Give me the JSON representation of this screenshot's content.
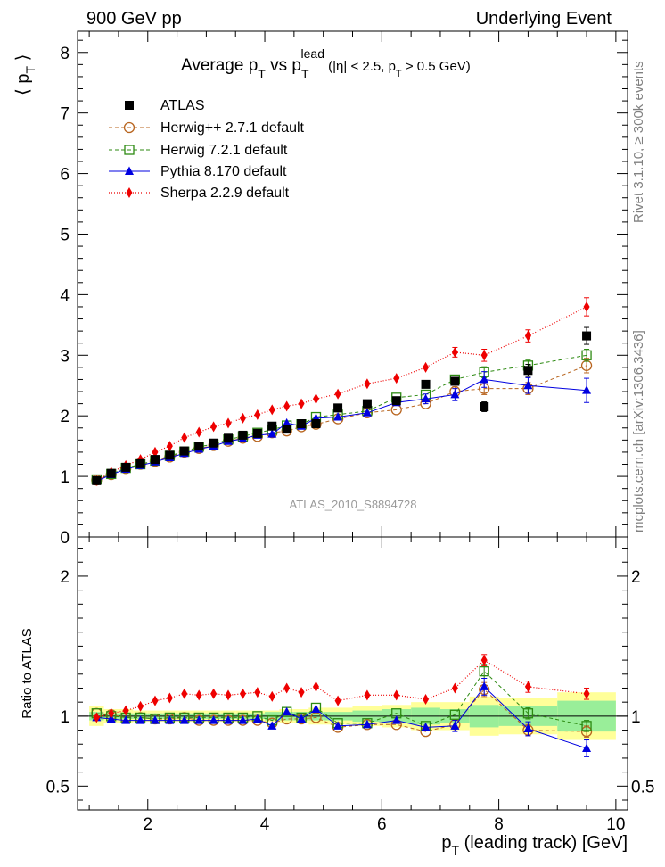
{
  "header": {
    "left": "900 GeV pp",
    "right": "Underlying Event"
  },
  "side_labels": {
    "top": "Rivet 3.1.10, ≥ 300k events",
    "bottom": "mcplots.cern.ch [arXiv:1306.3436]"
  },
  "colors": {
    "atlas": "#000000",
    "herwigpp": "#b8651f",
    "herwig7": "#2d8a12",
    "pythia": "#0000e0",
    "sherpa": "#ee0000",
    "band_inner": "#99ee99",
    "band_outer": "#ffff99"
  },
  "chart_data": [
    {
      "panel": "main",
      "type": "scatter",
      "title_parts": {
        "t1": "Average p",
        "t1_sub": "T",
        "t2": " vs p",
        "t2_sub": "T",
        "t2_sup": "lead",
        "t3": " (|η| < 2.5, p",
        "t3_sub": "T",
        "t4": " > 0.5 GeV)"
      },
      "ylabel": "⟨ p",
      "ylabel_sub": "T",
      "ylabel_end": " ⟩",
      "watermark": "ATLAS_2010_S8894728",
      "xlim": [
        0.8,
        10.2
      ],
      "ylim": [
        0,
        8.35
      ],
      "yticks": [
        0,
        1,
        2,
        3,
        4,
        5,
        6,
        7,
        8
      ],
      "ytick_labels": [
        "0",
        "1",
        "2",
        "3",
        "4",
        "5",
        "6",
        "7",
        "8"
      ],
      "legend_position": "top-left",
      "x": [
        1.125,
        1.375,
        1.625,
        1.875,
        2.125,
        2.375,
        2.625,
        2.875,
        3.125,
        3.375,
        3.625,
        3.875,
        4.125,
        4.375,
        4.625,
        4.875,
        5.25,
        5.75,
        6.25,
        6.75,
        7.25,
        7.75,
        8.5,
        9.5
      ],
      "series": [
        {
          "name": "ATLAS",
          "key": "atlas",
          "style": "square-filled",
          "values": [
            0.93,
            1.05,
            1.15,
            1.21,
            1.28,
            1.35,
            1.42,
            1.5,
            1.55,
            1.63,
            1.68,
            1.71,
            1.83,
            1.78,
            1.87,
            1.87,
            2.13,
            2.2,
            2.25,
            2.52,
            2.57,
            2.15,
            2.75,
            3.32
          ],
          "errors": [
            0.02,
            0.02,
            0.02,
            0.02,
            0.02,
            0.02,
            0.02,
            0.02,
            0.02,
            0.02,
            0.03,
            0.03,
            0.03,
            0.03,
            0.04,
            0.04,
            0.04,
            0.05,
            0.05,
            0.06,
            0.07,
            0.08,
            0.1,
            0.14
          ]
        },
        {
          "name": "Herwig++ 2.7.1 default",
          "key": "herwigpp",
          "style": "circle-open-dashed",
          "values": [
            0.94,
            1.03,
            1.13,
            1.2,
            1.25,
            1.32,
            1.4,
            1.46,
            1.51,
            1.58,
            1.63,
            1.66,
            1.72,
            1.75,
            1.82,
            1.86,
            1.95,
            2.05,
            2.1,
            2.2,
            2.4,
            2.45,
            2.45,
            2.83
          ],
          "errors": [
            0.01,
            0.01,
            0.01,
            0.01,
            0.01,
            0.01,
            0.01,
            0.02,
            0.02,
            0.02,
            0.02,
            0.02,
            0.03,
            0.03,
            0.03,
            0.03,
            0.04,
            0.04,
            0.05,
            0.06,
            0.08,
            0.1,
            0.1,
            0.12
          ]
        },
        {
          "name": "Herwig 7.2.1 default",
          "key": "herwig7",
          "style": "square-open-dashed",
          "values": [
            0.95,
            1.04,
            1.14,
            1.2,
            1.26,
            1.34,
            1.41,
            1.49,
            1.53,
            1.61,
            1.66,
            1.72,
            1.77,
            1.84,
            1.86,
            1.98,
            2.02,
            2.08,
            2.3,
            2.35,
            2.6,
            2.72,
            2.83,
            3.0
          ],
          "errors": [
            0.01,
            0.01,
            0.01,
            0.01,
            0.01,
            0.01,
            0.02,
            0.02,
            0.02,
            0.02,
            0.02,
            0.02,
            0.03,
            0.03,
            0.03,
            0.03,
            0.04,
            0.04,
            0.05,
            0.06,
            0.07,
            0.09,
            0.09,
            0.1
          ]
        },
        {
          "name": "Pythia 8.170 default",
          "key": "pythia",
          "style": "triangle-filled-solid",
          "values": [
            0.92,
            1.03,
            1.12,
            1.18,
            1.24,
            1.31,
            1.38,
            1.45,
            1.5,
            1.58,
            1.62,
            1.68,
            1.7,
            1.88,
            1.83,
            1.96,
            1.98,
            2.05,
            2.22,
            2.28,
            2.35,
            2.6,
            2.5,
            2.42
          ],
          "errors": [
            0.01,
            0.01,
            0.01,
            0.01,
            0.01,
            0.01,
            0.01,
            0.02,
            0.02,
            0.02,
            0.02,
            0.02,
            0.03,
            0.03,
            0.03,
            0.03,
            0.04,
            0.05,
            0.06,
            0.08,
            0.1,
            0.13,
            0.13,
            0.2
          ]
        },
        {
          "name": "Sherpa 2.2.9 default",
          "key": "sherpa",
          "style": "diamond-filled-dotted",
          "values": [
            0.93,
            1.07,
            1.18,
            1.28,
            1.4,
            1.5,
            1.64,
            1.73,
            1.82,
            1.88,
            1.96,
            2.02,
            2.1,
            2.16,
            2.2,
            2.28,
            2.36,
            2.53,
            2.62,
            2.8,
            3.05,
            3.0,
            3.32,
            3.8
          ],
          "errors": [
            0.01,
            0.01,
            0.01,
            0.01,
            0.01,
            0.01,
            0.02,
            0.02,
            0.02,
            0.02,
            0.02,
            0.03,
            0.03,
            0.03,
            0.04,
            0.04,
            0.04,
            0.05,
            0.05,
            0.06,
            0.08,
            0.1,
            0.1,
            0.15
          ]
        }
      ]
    },
    {
      "panel": "ratio",
      "type": "scatter",
      "ylabel": "Ratio to ATLAS",
      "xlabel": "p",
      "xlabel_sub": "T",
      "xlabel_end": " (leading track) [GeV]",
      "xlim": [
        0.8,
        10.2
      ],
      "ylim": [
        0.33,
        2.28
      ],
      "xticks": [
        2,
        4,
        6,
        8,
        10
      ],
      "xtick_labels": [
        "2",
        "4",
        "6",
        "8",
        "10"
      ],
      "yticks": [
        0.5,
        1,
        2
      ],
      "ytick_labels": [
        "0.5",
        "1",
        "2"
      ],
      "bins": [
        [
          1.0,
          1.25
        ],
        [
          1.25,
          1.5
        ],
        [
          1.5,
          1.75
        ],
        [
          1.75,
          2.0
        ],
        [
          2.0,
          2.25
        ],
        [
          2.25,
          2.5
        ],
        [
          2.5,
          2.75
        ],
        [
          2.75,
          3.0
        ],
        [
          3.0,
          3.25
        ],
        [
          3.25,
          3.5
        ],
        [
          3.5,
          3.75
        ],
        [
          3.75,
          4.0
        ],
        [
          4.0,
          4.25
        ],
        [
          4.25,
          4.5
        ],
        [
          4.5,
          4.75
        ],
        [
          4.75,
          5.0
        ],
        [
          5.0,
          5.5
        ],
        [
          5.5,
          6.0
        ],
        [
          6.0,
          6.5
        ],
        [
          6.5,
          7.0
        ],
        [
          7.0,
          7.5
        ],
        [
          7.5,
          8.0
        ],
        [
          8.0,
          9.0
        ],
        [
          9.0,
          10.0
        ]
      ],
      "band_inner": [
        0.03,
        0.02,
        0.02,
        0.02,
        0.02,
        0.02,
        0.02,
        0.02,
        0.02,
        0.02,
        0.02,
        0.02,
        0.03,
        0.03,
        0.03,
        0.03,
        0.03,
        0.04,
        0.05,
        0.06,
        0.05,
        0.08,
        0.07,
        0.11
      ],
      "band_outer": [
        0.07,
        0.05,
        0.05,
        0.04,
        0.04,
        0.04,
        0.04,
        0.04,
        0.04,
        0.04,
        0.04,
        0.04,
        0.04,
        0.05,
        0.05,
        0.06,
        0.06,
        0.07,
        0.08,
        0.1,
        0.1,
        0.14,
        0.13,
        0.17
      ],
      "x": [
        1.125,
        1.375,
        1.625,
        1.875,
        2.125,
        2.375,
        2.625,
        2.875,
        3.125,
        3.375,
        3.625,
        3.875,
        4.125,
        4.375,
        4.625,
        4.875,
        5.25,
        5.75,
        6.25,
        6.75,
        7.25,
        7.75,
        8.5,
        9.5
      ],
      "series": [
        {
          "key": "herwigpp",
          "style": "circle-open-dashed",
          "values": [
            1.02,
            1.01,
            0.99,
            0.99,
            0.98,
            0.98,
            0.99,
            0.97,
            0.97,
            0.97,
            0.97,
            0.97,
            0.95,
            0.98,
            0.98,
            0.99,
            0.92,
            0.94,
            0.94,
            0.89,
            0.94,
            1.19,
            0.9,
            0.89
          ],
          "errors": [
            0.01,
            0.01,
            0.01,
            0.01,
            0.01,
            0.01,
            0.01,
            0.01,
            0.01,
            0.01,
            0.01,
            0.01,
            0.02,
            0.02,
            0.02,
            0.02,
            0.02,
            0.02,
            0.02,
            0.03,
            0.03,
            0.05,
            0.04,
            0.04
          ]
        },
        {
          "key": "herwig7",
          "style": "square-open-dashed",
          "values": [
            1.02,
            1.0,
            0.99,
            0.99,
            0.98,
            0.99,
            0.99,
            0.99,
            0.99,
            0.99,
            0.99,
            1.0,
            0.97,
            1.03,
            0.99,
            1.06,
            0.95,
            0.95,
            1.02,
            0.93,
            1.01,
            1.32,
            1.02,
            0.93
          ],
          "errors": [
            0.01,
            0.01,
            0.01,
            0.01,
            0.01,
            0.01,
            0.01,
            0.01,
            0.01,
            0.01,
            0.01,
            0.01,
            0.02,
            0.02,
            0.02,
            0.02,
            0.02,
            0.02,
            0.02,
            0.03,
            0.03,
            0.05,
            0.04,
            0.04
          ]
        },
        {
          "key": "pythia",
          "style": "triangle-filled-solid",
          "values": [
            0.99,
            0.98,
            0.97,
            0.97,
            0.97,
            0.97,
            0.97,
            0.97,
            0.97,
            0.97,
            0.97,
            0.98,
            0.93,
            1.03,
            0.98,
            1.05,
            0.93,
            0.94,
            0.97,
            0.92,
            0.93,
            1.21,
            0.91,
            0.77
          ],
          "errors": [
            0.01,
            0.01,
            0.01,
            0.01,
            0.01,
            0.01,
            0.01,
            0.01,
            0.01,
            0.01,
            0.01,
            0.01,
            0.02,
            0.02,
            0.02,
            0.02,
            0.02,
            0.02,
            0.03,
            0.03,
            0.04,
            0.06,
            0.05,
            0.06
          ]
        },
        {
          "key": "sherpa",
          "style": "diamond-filled-dotted",
          "values": [
            0.99,
            1.02,
            1.04,
            1.07,
            1.11,
            1.13,
            1.16,
            1.15,
            1.16,
            1.15,
            1.16,
            1.17,
            1.14,
            1.2,
            1.17,
            1.21,
            1.11,
            1.15,
            1.15,
            1.12,
            1.2,
            1.4,
            1.21,
            1.16
          ],
          "errors": [
            0.01,
            0.01,
            0.01,
            0.01,
            0.01,
            0.01,
            0.01,
            0.01,
            0.01,
            0.01,
            0.01,
            0.01,
            0.02,
            0.02,
            0.02,
            0.02,
            0.02,
            0.02,
            0.02,
            0.03,
            0.03,
            0.04,
            0.04,
            0.04
          ]
        }
      ]
    }
  ]
}
